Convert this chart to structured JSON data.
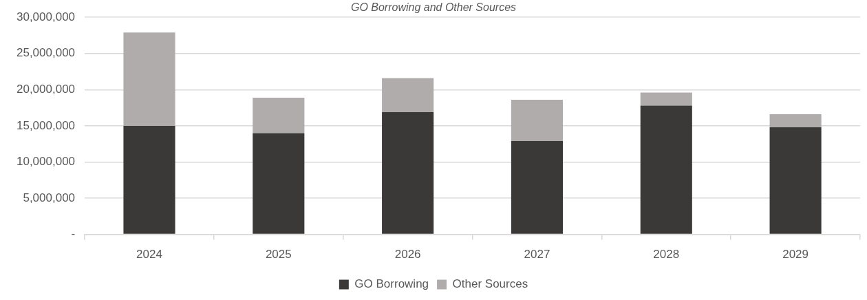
{
  "chart_data": {
    "type": "bar",
    "title": "GO Borrowing and Other Sources",
    "categories": [
      "2024",
      "2025",
      "2026",
      "2027",
      "2028",
      "2029"
    ],
    "stacked": true,
    "series": [
      {
        "name": "GO Borrowing",
        "color": "#3a3937",
        "values": [
          15000000,
          14000000,
          16900000,
          12900000,
          17800000,
          14800000
        ]
      },
      {
        "name": "Other Sources",
        "color": "#afacab",
        "values": [
          12900000,
          4900000,
          4700000,
          5700000,
          1800000,
          1800000
        ]
      }
    ],
    "ylim": [
      0,
      30000000
    ],
    "yticks": [
      {
        "value": 0,
        "label": "-"
      },
      {
        "value": 5000000,
        "label": "5,000,000"
      },
      {
        "value": 10000000,
        "label": "10,000,000"
      },
      {
        "value": 15000000,
        "label": "15,000,000"
      },
      {
        "value": 20000000,
        "label": "20,000,000"
      },
      {
        "value": 25000000,
        "label": "25,000,000"
      },
      {
        "value": 30000000,
        "label": "30,000,000"
      }
    ],
    "grid": "y",
    "legend": "bottom"
  }
}
